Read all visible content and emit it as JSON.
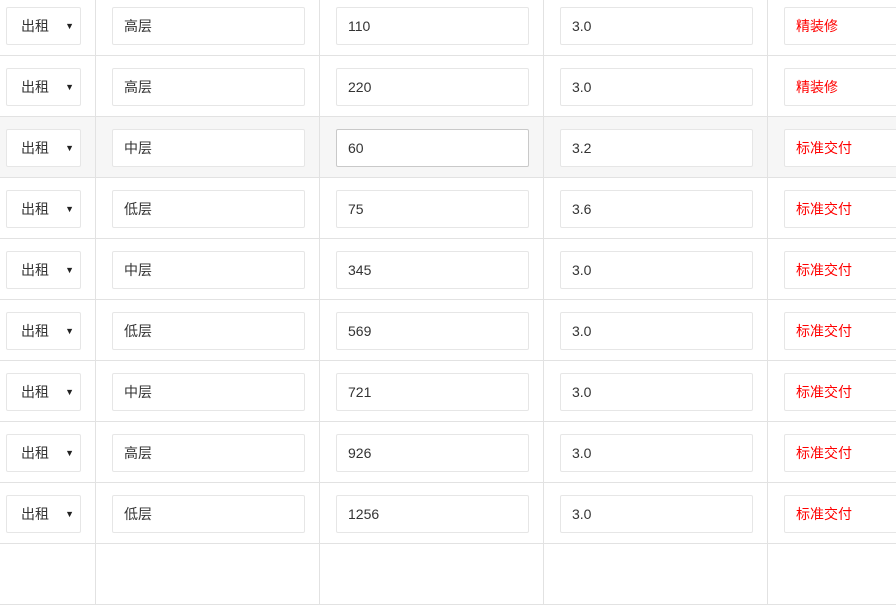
{
  "rows": [
    {
      "type": "出租",
      "floor": "高层",
      "area": "110",
      "height": "3.0",
      "decoration": "精装修"
    },
    {
      "type": "出租",
      "floor": "高层",
      "area": "220",
      "height": "3.0",
      "decoration": "精装修"
    },
    {
      "type": "出租",
      "floor": "中层",
      "area": "60",
      "height": "3.2",
      "decoration": "标准交付",
      "highlighted": true
    },
    {
      "type": "出租",
      "floor": "低层",
      "area": "75",
      "height": "3.6",
      "decoration": "标准交付"
    },
    {
      "type": "出租",
      "floor": "中层",
      "area": "345",
      "height": "3.0",
      "decoration": "标准交付"
    },
    {
      "type": "出租",
      "floor": "低层",
      "area": "569",
      "height": "3.0",
      "decoration": "标准交付"
    },
    {
      "type": "出租",
      "floor": "中层",
      "area": "721",
      "height": "3.0",
      "decoration": "标准交付"
    },
    {
      "type": "出租",
      "floor": "高层",
      "area": "926",
      "height": "3.0",
      "decoration": "标准交付"
    },
    {
      "type": "出租",
      "floor": "低层",
      "area": "1256",
      "height": "3.0",
      "decoration": "标准交付"
    }
  ],
  "colors": {
    "decoration_text": "#ff0000",
    "highlight_row": "#f6f6f6"
  },
  "icons": {
    "dropdown": "caret-down-icon"
  }
}
